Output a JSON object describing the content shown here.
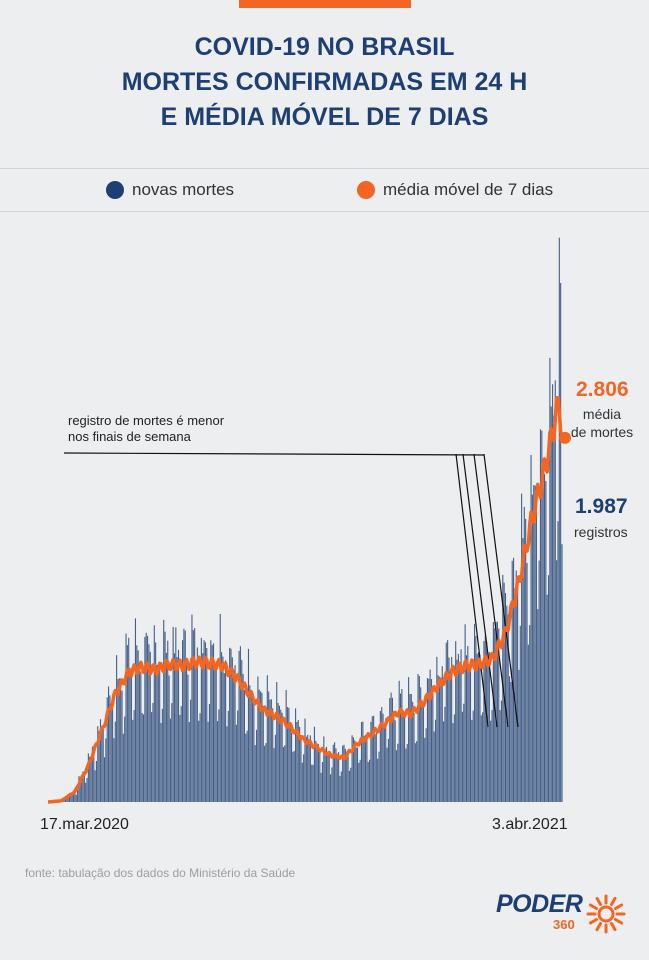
{
  "title_lines": [
    "COVID-19 NO BRASIL",
    "MORTES CONFIRMADAS EM 24 H",
    "E MÉDIA MÓVEL DE 7 DIAS"
  ],
  "legend": {
    "deaths": {
      "label": "novas mortes",
      "color": "#1e3f73"
    },
    "average": {
      "label": "média móvel de 7 dias",
      "color": "#f26522"
    }
  },
  "callout_lines": [
    "registro de mortes é menor",
    "nos finais de semana"
  ],
  "latest": {
    "average_value": "2.806",
    "average_text_lines": [
      "média",
      "de mortes"
    ],
    "deaths_value": "1.987",
    "deaths_text": "registros"
  },
  "source": "fonte: tabulação dos dados do Ministério da Saúde",
  "logo": {
    "main": "PODER",
    "sub": "360"
  },
  "chart_data": {
    "type": "bar",
    "x_start": "17.mar.2020",
    "x_end": "3.abr.2021",
    "x_tick_labels": [
      "17.mar.2020",
      "3.abr.2021"
    ],
    "weekly_pattern": [
      0.62,
      0.7,
      1.28,
      1.18,
      1.14,
      1.06,
      1.02
    ],
    "series": [
      {
        "name": "média móvel de 7 dias",
        "kind": "line",
        "anchor_days": [
          0,
          10,
          20,
          30,
          40,
          50,
          60,
          70,
          80,
          90,
          100,
          110,
          120,
          130,
          140,
          150,
          160,
          170,
          180,
          190,
          200,
          210,
          220,
          230,
          240,
          250,
          260,
          270,
          280,
          290,
          300,
          310,
          320,
          330,
          340,
          350,
          360,
          370,
          380,
          382
        ],
        "anchor_values": [
          0,
          10,
          80,
          280,
          550,
          830,
          1000,
          1040,
          1020,
          1060,
          1050,
          1080,
          1070,
          1050,
          960,
          830,
          710,
          660,
          580,
          480,
          420,
          360,
          340,
          450,
          520,
          600,
          690,
          680,
          780,
          900,
          1000,
          1050,
          1060,
          1100,
          1300,
          1700,
          2200,
          2600,
          3100,
          2806
        ]
      },
      {
        "name": "novas mortes",
        "kind": "bar",
        "last_value": 1987
      }
    ]
  }
}
